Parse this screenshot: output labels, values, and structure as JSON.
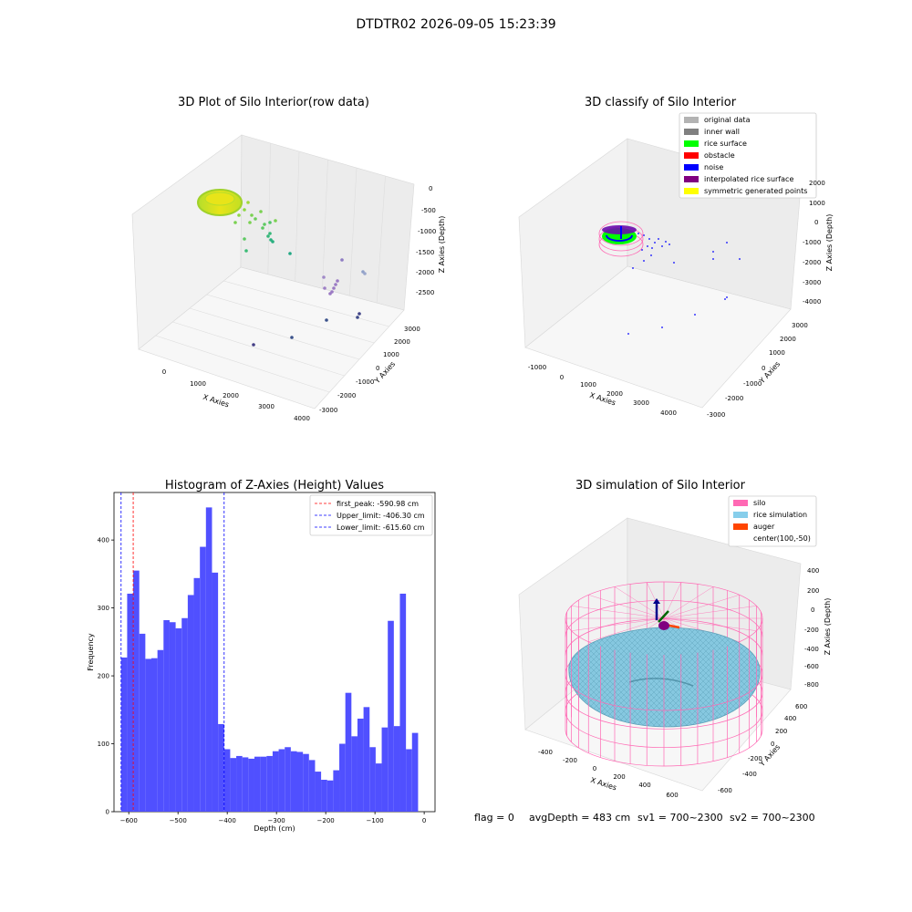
{
  "figure": {
    "title": "DTDTR02 2026-09-05 15:23:39",
    "status": {
      "flag": "flag = 0",
      "avg_depth": "avgDepth = 483 cm",
      "sv1": "sv1 = 700~2300",
      "sv2": "sv2 = 700~2300"
    }
  },
  "chart_data": [
    {
      "type": "scatter",
      "title": "3D Plot of Silo Interior(row data)",
      "xlabel": "X Axies",
      "ylabel": "Y Axies",
      "zlabel": "Z Axies (Depth)",
      "x_ticks": [
        "0",
        "1000",
        "2000",
        "3000",
        "4000"
      ],
      "y_ticks": [
        "-3000",
        "-2000",
        "-1000",
        "0",
        "1000",
        "2000",
        "3000"
      ],
      "z_ticks": [
        "-2500",
        "-2000",
        "-1500",
        "-1000",
        "-500",
        "0"
      ],
      "colormap": [
        "#fde725",
        "#7ad151",
        "#22a884",
        "#2a788e",
        "#414487",
        "#440154"
      ]
    },
    {
      "type": "scatter",
      "title": "3D classify of Silo Interior",
      "xlabel": "X Axies",
      "ylabel": "Y Axies",
      "zlabel": "Z Axies (Depth)",
      "x_ticks": [
        "-1000",
        "0",
        "1000",
        "2000",
        "3000",
        "4000"
      ],
      "y_ticks": [
        "-3000",
        "-2000",
        "-1000",
        "0",
        "1000",
        "2000",
        "3000"
      ],
      "z_ticks": [
        "-4000",
        "-3000",
        "-2000",
        "-1000",
        "0",
        "1000",
        "2000"
      ],
      "legend_position": "top-right",
      "legend": [
        {
          "label": "original data",
          "color": "#b3b3b3"
        },
        {
          "label": "inner wall",
          "color": "#808080"
        },
        {
          "label": "rice surface",
          "color": "#00ff00"
        },
        {
          "label": "obstacle",
          "color": "#ff0000"
        },
        {
          "label": "noise",
          "color": "#0000ff"
        },
        {
          "label": "interpolated rice surface",
          "color": "#800080"
        },
        {
          "label": "symmetric generated points",
          "color": "#ffff00"
        }
      ]
    },
    {
      "type": "bar",
      "title": "Histogram of Z-Axies (Height) Values",
      "xlabel": "Depth (cm)",
      "ylabel": "Frequency",
      "xlim": [
        -630,
        22
      ],
      "ylim": [
        0,
        470
      ],
      "x_ticks": [
        -600,
        -500,
        -400,
        -300,
        -200,
        -100,
        0
      ],
      "y_ticks": [
        0,
        100,
        200,
        300,
        400
      ],
      "bin_start": -615.6,
      "bin_width": 12.31,
      "bar_color": "#5050ff",
      "values": [
        227,
        321,
        355,
        262,
        225,
        226,
        238,
        282,
        279,
        270,
        285,
        319,
        344,
        390,
        448,
        352,
        129,
        92,
        79,
        82,
        80,
        78,
        81,
        81,
        82,
        89,
        92,
        95,
        89,
        88,
        85,
        76,
        59,
        47,
        46,
        61,
        100,
        175,
        111,
        137,
        154,
        95,
        71,
        124,
        281,
        126,
        321,
        92,
        116
      ],
      "lines": [
        {
          "label": "first_peak: -590.98 cm",
          "x": -590.98,
          "color": "#ff0000"
        },
        {
          "label": "Upper_limit: -406.30 cm",
          "x": -406.3,
          "color": "#0000ff"
        },
        {
          "label": "Lower_limit: -615.60 cm",
          "x": -615.6,
          "color": "#0000ff"
        }
      ],
      "legend_position": "top-right"
    },
    {
      "type": "surface",
      "title": "3D simulation of Silo Interior",
      "xlabel": "X Axies",
      "ylabel": "Y Axies",
      "zlabel": "Z Axies (Depth)",
      "x_ticks": [
        "-400",
        "-200",
        "0",
        "200",
        "400",
        "600"
      ],
      "y_ticks": [
        "-600",
        "-400",
        "-200",
        "0",
        "200",
        "400",
        "600"
      ],
      "z_ticks": [
        "-800",
        "-600",
        "-400",
        "-200",
        "0",
        "200",
        "400"
      ],
      "legend_position": "top-right",
      "legend": [
        {
          "label": "silo",
          "color": "#ff69b4"
        },
        {
          "label": "rice simulation",
          "color": "#87ceeb"
        },
        {
          "label": "auger",
          "color": "#ff4500"
        },
        {
          "label": "center(100,-50)",
          "color": ""
        }
      ]
    }
  ]
}
